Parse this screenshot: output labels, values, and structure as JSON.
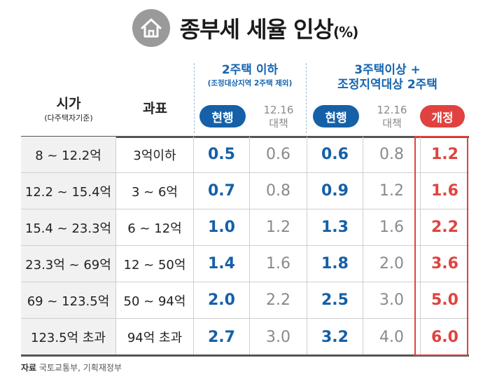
{
  "title": {
    "main": "종부세 세율 인상",
    "unit": "(%)"
  },
  "header": {
    "col_price": "시가",
    "col_price_sub": "(다주택자기준)",
    "col_base": "과표",
    "group1_title": "2주택 이하",
    "group1_sub": "(조정대상지역 2주택 제외)",
    "group2_title_line1": "3주택이상 +",
    "group2_title_line2": "조정지역대상 2주택",
    "current_label": "현행",
    "plan_line1": "12.16",
    "plan_line2": "대책",
    "revised_label": "개정"
  },
  "rows": [
    {
      "price": "8 ~ 12.2억",
      "base": "3억이하",
      "g1_current": "0.5",
      "g1_plan": "0.6",
      "g2_current": "0.6",
      "g2_plan": "0.8",
      "revised": "1.2"
    },
    {
      "price": "12.2 ~ 15.4억",
      "base": "3 ~ 6억",
      "g1_current": "0.7",
      "g1_plan": "0.8",
      "g2_current": "0.9",
      "g2_plan": "1.2",
      "revised": "1.6"
    },
    {
      "price": "15.4 ~ 23.3억",
      "base": "6 ~ 12억",
      "g1_current": "1.0",
      "g1_plan": "1.2",
      "g2_current": "1.3",
      "g2_plan": "1.6",
      "revised": "2.2"
    },
    {
      "price": "23.3억 ~ 69억",
      "base": "12 ~ 50억",
      "g1_current": "1.4",
      "g1_plan": "1.6",
      "g2_current": "1.8",
      "g2_plan": "2.0",
      "revised": "3.6"
    },
    {
      "price": "69 ~ 123.5억",
      "base": "50 ~ 94억",
      "g1_current": "2.0",
      "g1_plan": "2.2",
      "g2_current": "2.5",
      "g2_plan": "3.0",
      "revised": "5.0"
    },
    {
      "price": "123.5억 초과",
      "base": "94억 초과",
      "g1_current": "2.7",
      "g1_plan": "3.0",
      "g2_current": "3.2",
      "g2_plan": "4.0",
      "revised": "6.0"
    }
  ],
  "source": {
    "label": "자료",
    "text": "국토교통부, 기획재정부"
  },
  "colors": {
    "blue": "#1560a8",
    "red": "#e0433f",
    "gray": "#8a8a8a"
  },
  "icons": {
    "title_badge": "house-icon"
  }
}
